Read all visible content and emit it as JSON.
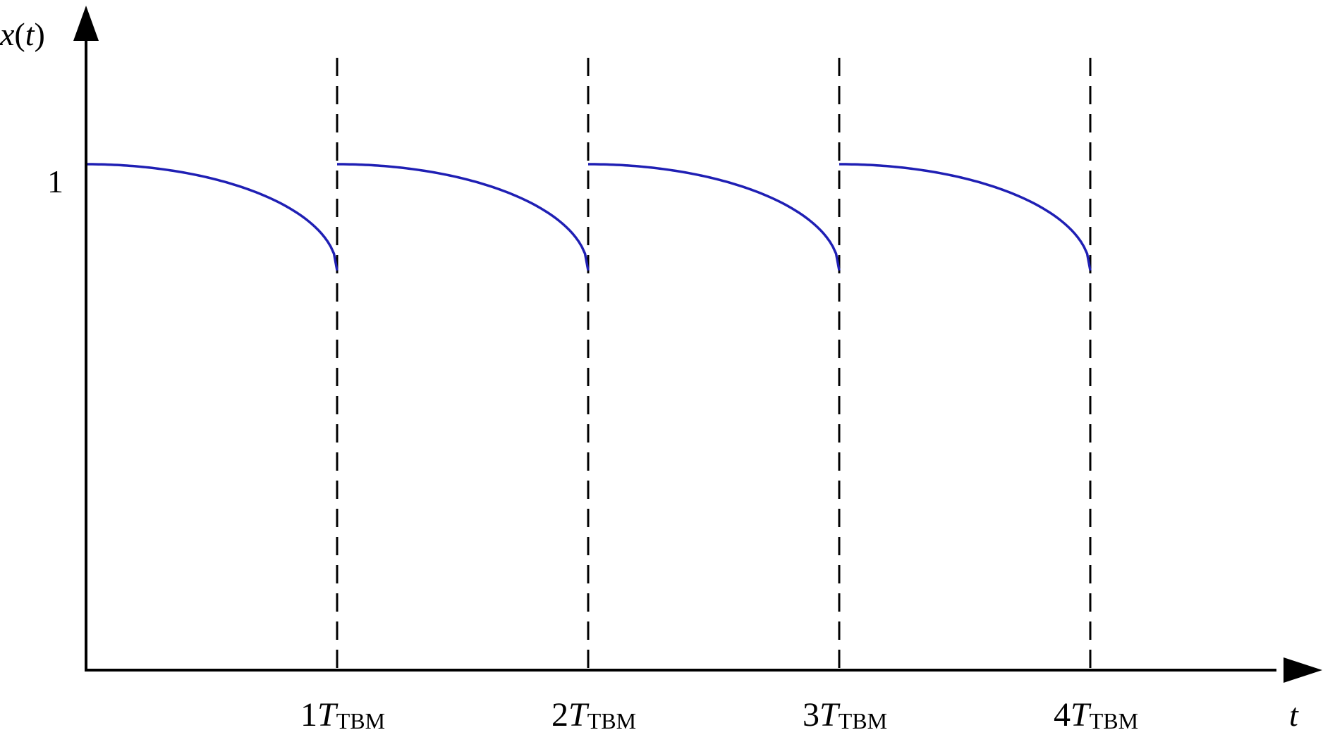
{
  "chart_data": {
    "type": "line",
    "title": "",
    "ylabel": "x(t)",
    "ylabel_parts": {
      "var": "x",
      "open": "(",
      "arg": "t",
      "close": ")"
    },
    "xlabel": "t",
    "y_ticks": [
      {
        "value": 1,
        "label": "1"
      }
    ],
    "x_ticks": [
      {
        "value": 1,
        "coef": "1",
        "var": "T",
        "sub": "TBM"
      },
      {
        "value": 2,
        "coef": "2",
        "var": "T",
        "sub": "TBM"
      },
      {
        "value": 3,
        "coef": "3",
        "var": "T",
        "sub": "TBM"
      },
      {
        "value": 4,
        "coef": "4",
        "var": "T",
        "sub": "TBM"
      }
    ],
    "xlim": [
      0,
      4.7
    ],
    "ylim": [
      0,
      1.3
    ],
    "grid": false,
    "vertical_dashed_lines_at": [
      1,
      2,
      3,
      4
    ],
    "series": [
      {
        "line_color": "#1f1fb4",
        "segments": [
          {
            "x_start": 0,
            "x_end": 1,
            "y_start": 1.0,
            "y_end": 0.79
          },
          {
            "x_start": 1,
            "x_end": 2,
            "y_start": 1.0,
            "y_end": 0.79
          },
          {
            "x_start": 2,
            "x_end": 3,
            "y_start": 1.0,
            "y_end": 0.79
          },
          {
            "x_start": 3,
            "x_end": 4,
            "y_start": 1.0,
            "y_end": 0.79
          }
        ]
      }
    ]
  }
}
